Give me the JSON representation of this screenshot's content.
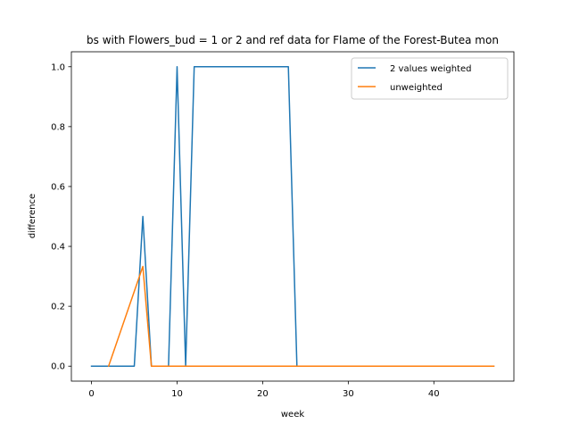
{
  "chart_data": {
    "type": "line",
    "title": "bs with Flowers_bud = 1 or 2 and ref data for Flame of the Forest-Butea mon",
    "xlabel": "week",
    "ylabel": "difference",
    "xlim": [
      -2.35,
      49.35
    ],
    "ylim": [
      -0.05,
      1.05
    ],
    "xticks": [
      0,
      10,
      20,
      30,
      40
    ],
    "yticks": [
      0.0,
      0.2,
      0.4,
      0.6,
      0.8,
      1.0
    ],
    "xtick_labels": [
      "0",
      "10",
      "20",
      "30",
      "40"
    ],
    "ytick_labels": [
      "0.0",
      "0.2",
      "0.4",
      "0.6",
      "0.8",
      "1.0"
    ],
    "grid": false,
    "legend_position": "top-right",
    "series": [
      {
        "name": "2 values weighted",
        "color": "#1f77b4",
        "x": [
          0,
          5,
          6,
          7,
          9,
          10,
          11,
          12,
          23,
          24,
          47
        ],
        "y": [
          0,
          0,
          0.5,
          0,
          0,
          1,
          0,
          1,
          1,
          0,
          0
        ]
      },
      {
        "name": "unweighted",
        "color": "#ff7f0e",
        "x": [
          2,
          6,
          7,
          47
        ],
        "y": [
          0,
          0.333,
          0,
          0
        ]
      }
    ]
  }
}
